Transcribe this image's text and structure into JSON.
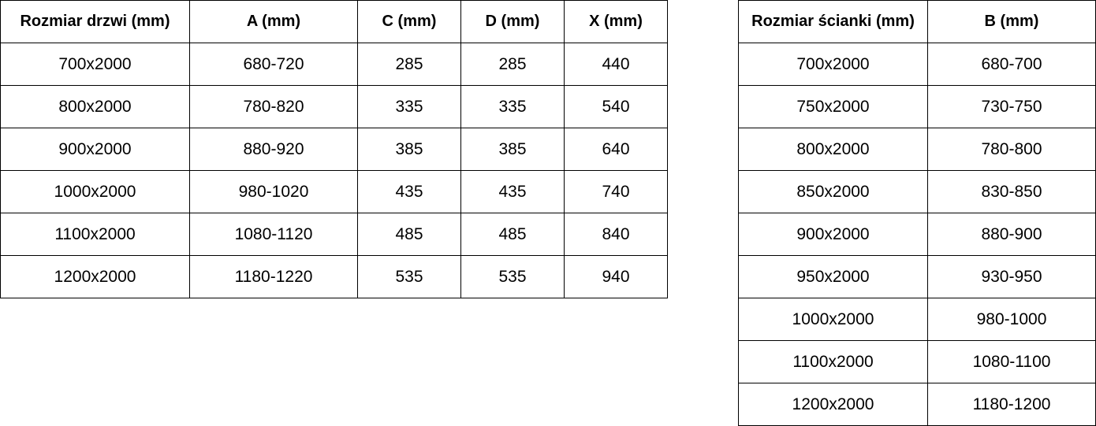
{
  "door_table": {
    "headers": [
      "Rozmiar drzwi (mm)",
      "A (mm)",
      "C (mm)",
      "D (mm)",
      "X (mm)"
    ],
    "rows": [
      [
        "700x2000",
        "680-720",
        "285",
        "285",
        "440"
      ],
      [
        "800x2000",
        "780-820",
        "335",
        "335",
        "540"
      ],
      [
        "900x2000",
        "880-920",
        "385",
        "385",
        "640"
      ],
      [
        "1000x2000",
        "980-1020",
        "435",
        "435",
        "740"
      ],
      [
        "1100x2000",
        "1080-1120",
        "485",
        "485",
        "840"
      ],
      [
        "1200x2000",
        "1180-1220",
        "535",
        "535",
        "940"
      ]
    ]
  },
  "wall_table": {
    "headers": [
      "Rozmiar ścianki (mm)",
      "B (mm)"
    ],
    "rows": [
      [
        "700x2000",
        "680-700"
      ],
      [
        "750x2000",
        "730-750"
      ],
      [
        "800x2000",
        "780-800"
      ],
      [
        "850x2000",
        "830-850"
      ],
      [
        "900x2000",
        "880-900"
      ],
      [
        "950x2000",
        "930-950"
      ],
      [
        "1000x2000",
        "980-1000"
      ],
      [
        "1100x2000",
        "1080-1100"
      ],
      [
        "1200x2000",
        "1180-1200"
      ]
    ]
  }
}
